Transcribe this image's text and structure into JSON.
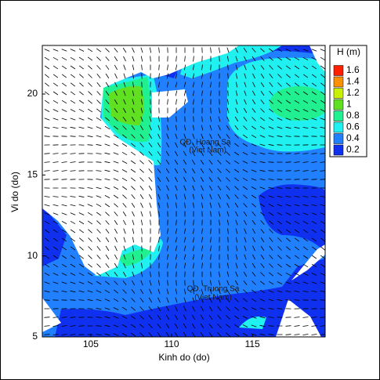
{
  "chart_data": {
    "type": "contour",
    "xlabel": "Kinh do (do)",
    "ylabel": "Vi do (do)",
    "xlim": [
      102,
      119.5
    ],
    "ylim": [
      5,
      23
    ],
    "xticks": [
      105,
      110,
      115
    ],
    "yticks": [
      5,
      10,
      15,
      20
    ],
    "colorbar": {
      "title": "H  (m)",
      "levels": [
        1.6,
        1.4,
        1.2,
        1,
        0.8,
        0.6,
        0.4,
        0.2
      ],
      "colors": [
        "#ff2000",
        "#ff9000",
        "#c8f000",
        "#60e020",
        "#20f090",
        "#20f0f0",
        "#2080ff",
        "#1030f0"
      ]
    },
    "annotations": [
      "QĐ. Hoang Sa",
      "(Viet Nam)",
      "QĐ. Truong Sa",
      "(Viet Nam)"
    ]
  }
}
